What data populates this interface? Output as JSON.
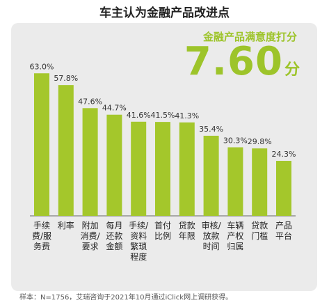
{
  "title": "车主认为金融产品改进点",
  "score": {
    "label": "金融产品满意度打分",
    "value": "7.60",
    "unit": "分"
  },
  "footnote": "样本：N=1756，艾瑞咨询于2021年10月通过iClick网上调研获得。",
  "colors": {
    "bar": "#a4c72b",
    "score": "#9dc42a",
    "panel": "#ebebeb"
  },
  "chart_data": {
    "type": "bar",
    "categories": [
      "手续费/服务费",
      "利率",
      "附加消费/要求",
      "每月还款金额",
      "手续/资料繁琐程度",
      "首付比例",
      "贷款年限",
      "审核/放款时间",
      "车辆产权归属",
      "贷款门槛",
      "产品平台"
    ],
    "category_lines": [
      [
        "手续",
        "费/服",
        "务费"
      ],
      [
        "利率"
      ],
      [
        "附加",
        "消费/",
        "要求"
      ],
      [
        "每月",
        "还款",
        "金额"
      ],
      [
        "手续/",
        "资料",
        "繁琐",
        "程度"
      ],
      [
        "首付",
        "比例"
      ],
      [
        "贷款",
        "年限"
      ],
      [
        "审核/",
        "放款",
        "时间"
      ],
      [
        "车辆",
        "产权",
        "归属"
      ],
      [
        "贷款",
        "门槛"
      ],
      [
        "产品",
        "平台"
      ]
    ],
    "values": [
      63.0,
      57.8,
      47.6,
      44.7,
      41.6,
      41.5,
      41.3,
      35.4,
      30.3,
      29.8,
      24.3
    ],
    "value_labels": [
      "63.0%",
      "57.8%",
      "47.6%",
      "44.7%",
      "41.6%",
      "41.5%",
      "41.3%",
      "35.4%",
      "30.3%",
      "29.8%",
      "24.3%"
    ],
    "ylim": [
      0,
      70
    ],
    "grid": false,
    "legend": "none"
  }
}
